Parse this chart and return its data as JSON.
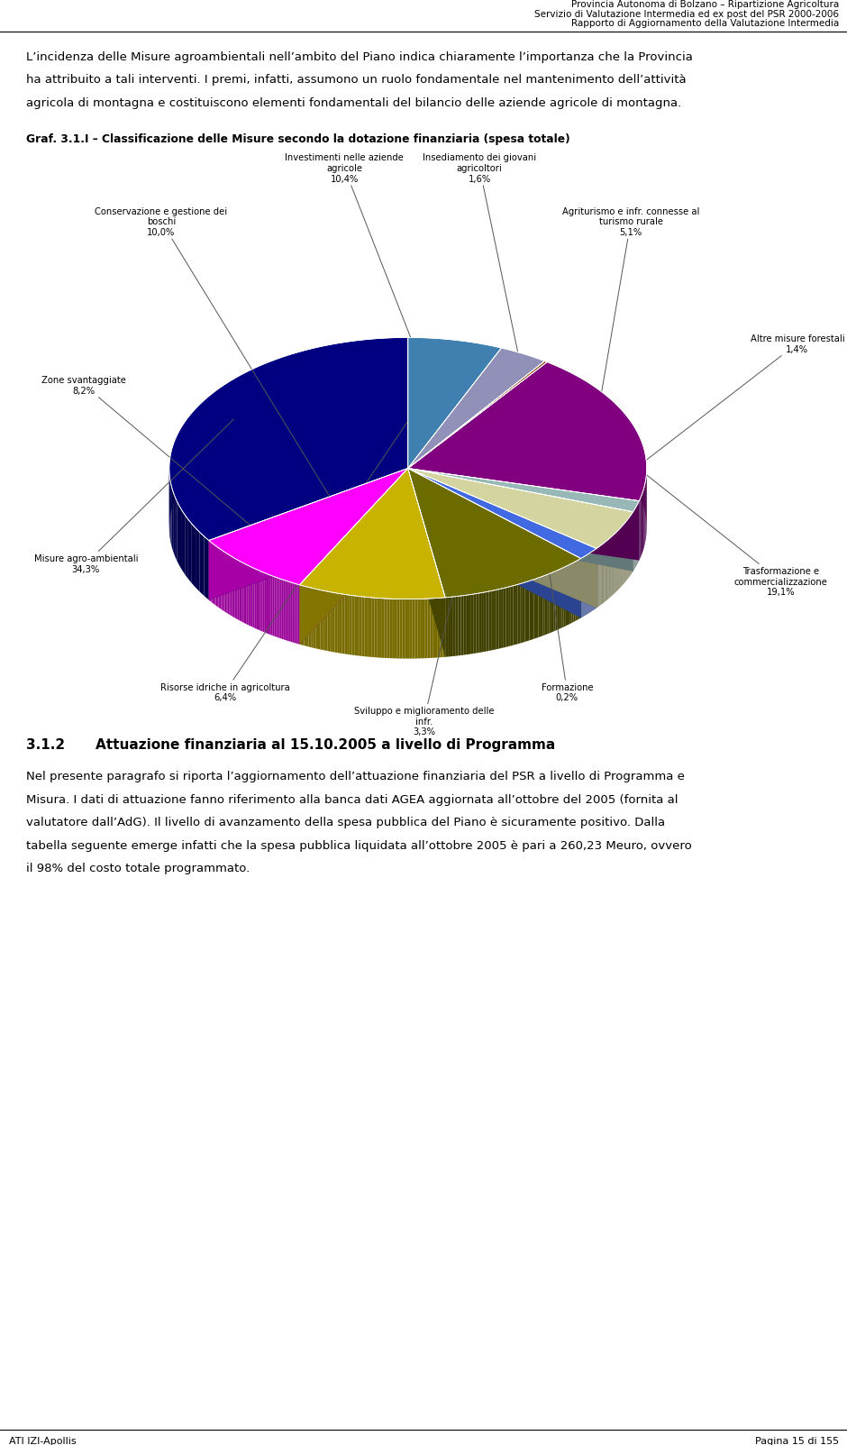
{
  "header_line1": "Provincia Autonoma di Bolzano – Ripartizione Agricoltura",
  "header_line2": "Servizio di Valutazione Intermedia ed ex post del PSR 2000-2006",
  "header_line3": "Rapporto di Aggiornamento della Valutazione Intermedia",
  "chart_title": "Graf. 3.1.I – Classificazione delle Misure secondo la dotazione finanziaria (spesa totale)",
  "section_title": "3.1.2",
  "section_title2": "Attuazione finanziaria al 15.10.2005 a livello di Programma",
  "footer_left": "ATI IZI-Apollis",
  "footer_right": "Pagina 15 di 155",
  "intro_lines": [
    "L’incidenza delle Misure agroambientali nell’ambito del Piano indica chiaramente l’importanza che la Provincia",
    "ha attribuito a tali interventi. I premi, infatti, assumono un ruolo fondamentale nel mantenimento dell’attività",
    "agricola di montagna e costituiscono elementi fondamentali del bilancio delle aziende agricole di montagna."
  ],
  "body_lines": [
    "Nel presente paragrafo si riporta l’aggiornamento dell’attuazione finanziaria del PSR a livello di Programma e",
    "Misura. I dati di attuazione fanno riferimento alla banca dati AGEA aggiornata all’ottobre del 2005 (fornita al",
    "valutatore dall’AdG). Il livello di avanzamento della spesa pubblica del Piano è sicuramente positivo. Dalla",
    "tabella seguente emerge infatti che la spesa pubblica liquidata all’ottobre 2005 è pari a 260,23 Meuro, ovvero",
    "il 98% del costo totale programmato."
  ],
  "slices": [
    {
      "label": "Misure agro-ambientali\n34,3%",
      "value": 34.3,
      "color": "#000080"
    },
    {
      "label": "Zone svantaggiate\n8,2%",
      "value": 8.2,
      "color": "#FF00FF"
    },
    {
      "label": "Conservazione e gestione dei\nboschi\n10,0%",
      "value": 10.0,
      "color": "#C8B400"
    },
    {
      "label": "Investimenti nelle aziende\nagricole\n10,4%",
      "value": 10.4,
      "color": "#6B6B00"
    },
    {
      "label": "Insediamento dei giovani\nagricoltori\n1,6%",
      "value": 1.6,
      "color": "#4169E1"
    },
    {
      "label": "Agriturismo e infr. connesse al\nturismo rurale\n5,1%",
      "value": 5.1,
      "color": "#D4D4A0"
    },
    {
      "label": "Altre misure forestali\n1,4%",
      "value": 1.4,
      "color": "#98B8B8"
    },
    {
      "label": "Trasformazione e\ncommercializzazione\n19,1%",
      "value": 19.1,
      "color": "#800080"
    },
    {
      "label": "Formazione\n0,2%",
      "value": 0.2,
      "color": "#8B3A00"
    },
    {
      "label": "Sviluppo e miglioramento delle\ninfr.\n3,3%",
      "value": 3.3,
      "color": "#9090B8"
    },
    {
      "label": "Risorse idriche in agricoltura\n6,4%",
      "value": 6.4,
      "color": "#4080B0"
    }
  ]
}
